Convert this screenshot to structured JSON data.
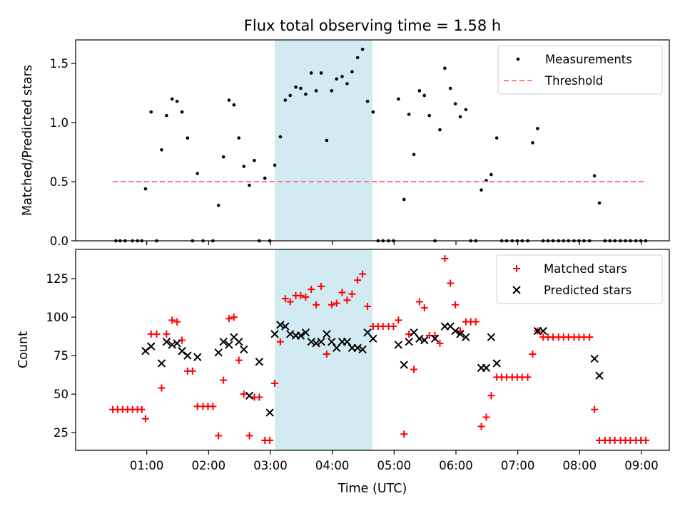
{
  "figure": {
    "title": "Flux total observing time = 1.58 h",
    "xlabel": "Time (UTC)",
    "x_ticks": [
      "01:00",
      "02:00",
      "03:00",
      "04:00",
      "05:00",
      "06:00",
      "07:00",
      "08:00",
      "09:00"
    ],
    "x_tick_hours": [
      1,
      2,
      3,
      4,
      5,
      6,
      7,
      8,
      9
    ],
    "x_range_hours": [
      -0.15,
      9.45
    ],
    "highlight_span_hours": [
      3.07,
      4.65
    ],
    "highlight_color": "#add8e6"
  },
  "chart_data": [
    {
      "type": "scatter",
      "ylabel": "Matched/Predicted stars",
      "ylim": [
        0,
        1.7
      ],
      "y_ticks": [
        0.0,
        0.5,
        1.0,
        1.5
      ],
      "y_tick_labels": [
        "0.0",
        "0.5",
        "1.0",
        "1.5"
      ],
      "legend_position": "top-right",
      "series": [
        {
          "name": "Measurements",
          "marker": "dot",
          "color": "#000000",
          "points": [
            [
              0.5,
              0
            ],
            [
              0.57,
              0
            ],
            [
              0.65,
              0
            ],
            [
              0.77,
              0
            ],
            [
              0.85,
              0
            ],
            [
              0.92,
              0
            ],
            [
              0.98,
              0.44
            ],
            [
              1.07,
              1.09
            ],
            [
              1.16,
              0
            ],
            [
              1.24,
              0.77
            ],
            [
              1.32,
              1.06
            ],
            [
              1.41,
              1.2
            ],
            [
              1.49,
              1.18
            ],
            [
              1.57,
              1.09
            ],
            [
              1.66,
              0.87
            ],
            [
              1.74,
              0
            ],
            [
              1.82,
              0.57
            ],
            [
              1.91,
              0
            ],
            [
              2.07,
              0
            ],
            [
              2.16,
              0.3
            ],
            [
              2.24,
              0.71
            ],
            [
              2.33,
              1.19
            ],
            [
              2.41,
              1.15
            ],
            [
              2.49,
              0.87
            ],
            [
              2.57,
              0.63
            ],
            [
              2.66,
              0.47
            ],
            [
              2.74,
              0.68
            ],
            [
              2.82,
              0
            ],
            [
              2.91,
              0.53
            ],
            [
              2.99,
              0
            ],
            [
              3.07,
              0.64
            ],
            [
              3.16,
              0.88
            ],
            [
              3.24,
              1.19
            ],
            [
              3.32,
              1.23
            ],
            [
              3.41,
              1.3
            ],
            [
              3.49,
              1.29
            ],
            [
              3.57,
              1.24
            ],
            [
              3.66,
              1.42
            ],
            [
              3.74,
              1.27
            ],
            [
              3.82,
              1.42
            ],
            [
              3.91,
              0.85
            ],
            [
              3.99,
              1.27
            ],
            [
              4.07,
              1.37
            ],
            [
              4.16,
              1.39
            ],
            [
              4.24,
              1.33
            ],
            [
              4.32,
              1.43
            ],
            [
              4.41,
              1.55
            ],
            [
              4.49,
              1.62
            ],
            [
              4.57,
              1.18
            ],
            [
              4.66,
              1.09
            ],
            [
              4.74,
              0
            ],
            [
              4.82,
              0
            ],
            [
              4.91,
              0
            ],
            [
              4.99,
              0
            ],
            [
              5.07,
              1.2
            ],
            [
              5.16,
              0.35
            ],
            [
              5.24,
              1.07
            ],
            [
              5.32,
              0.73
            ],
            [
              5.41,
              1.27
            ],
            [
              5.49,
              1.23
            ],
            [
              5.57,
              1.06
            ],
            [
              5.66,
              0
            ],
            [
              5.74,
              0.94
            ],
            [
              5.82,
              1.46
            ],
            [
              5.91,
              1.29
            ],
            [
              5.99,
              1.16
            ],
            [
              6.07,
              1.05
            ],
            [
              6.16,
              1.11
            ],
            [
              6.24,
              0
            ],
            [
              6.32,
              0
            ],
            [
              6.41,
              0.43
            ],
            [
              6.49,
              0.51
            ],
            [
              6.57,
              0.56
            ],
            [
              6.66,
              0.87
            ],
            [
              6.74,
              0
            ],
            [
              6.82,
              0
            ],
            [
              6.91,
              0
            ],
            [
              6.99,
              0
            ],
            [
              7.07,
              0
            ],
            [
              7.16,
              0
            ],
            [
              7.24,
              0.83
            ],
            [
              7.32,
              0.95
            ],
            [
              7.41,
              0
            ],
            [
              7.49,
              0
            ],
            [
              7.57,
              0
            ],
            [
              7.66,
              0
            ],
            [
              7.74,
              0
            ],
            [
              7.82,
              0
            ],
            [
              7.91,
              0
            ],
            [
              7.99,
              0
            ],
            [
              8.07,
              0
            ],
            [
              8.16,
              0
            ],
            [
              8.24,
              0.55
            ],
            [
              8.32,
              0.32
            ],
            [
              8.41,
              0
            ],
            [
              8.49,
              0
            ],
            [
              8.57,
              0
            ],
            [
              8.66,
              0
            ],
            [
              8.74,
              0
            ],
            [
              8.82,
              0
            ],
            [
              8.91,
              0
            ],
            [
              8.99,
              0
            ],
            [
              9.07,
              0
            ]
          ]
        },
        {
          "name": "Threshold",
          "marker": "dashed-line",
          "color": "#ff7f7f",
          "points": [
            [
              0.45,
              0.5
            ],
            [
              9.07,
              0.5
            ]
          ]
        }
      ]
    },
    {
      "type": "scatter",
      "ylabel": "Count",
      "ylim": [
        13.5,
        144
      ],
      "y_ticks": [
        25,
        50,
        75,
        100,
        125
      ],
      "y_tick_labels": [
        "25",
        "50",
        "75",
        "100",
        "125"
      ],
      "legend_position": "top-right",
      "series": [
        {
          "name": "Matched stars",
          "marker": "plus",
          "color": "#ff0000",
          "points": [
            [
              0.45,
              40
            ],
            [
              0.53,
              40
            ],
            [
              0.61,
              40
            ],
            [
              0.69,
              40
            ],
            [
              0.77,
              40
            ],
            [
              0.85,
              40
            ],
            [
              0.92,
              40
            ],
            [
              0.98,
              34
            ],
            [
              1.07,
              89
            ],
            [
              1.16,
              89
            ],
            [
              1.24,
              54
            ],
            [
              1.32,
              89
            ],
            [
              1.41,
              98
            ],
            [
              1.49,
              97
            ],
            [
              1.57,
              85
            ],
            [
              1.66,
              65
            ],
            [
              1.74,
              65
            ],
            [
              1.82,
              42
            ],
            [
              1.91,
              42
            ],
            [
              1.99,
              42
            ],
            [
              2.07,
              42
            ],
            [
              2.16,
              23
            ],
            [
              2.24,
              59
            ],
            [
              2.33,
              99
            ],
            [
              2.41,
              100
            ],
            [
              2.49,
              72
            ],
            [
              2.57,
              50
            ],
            [
              2.66,
              23
            ],
            [
              2.74,
              48
            ],
            [
              2.82,
              48
            ],
            [
              2.91,
              20
            ],
            [
              2.99,
              20
            ],
            [
              3.07,
              57
            ],
            [
              3.16,
              84
            ],
            [
              3.24,
              112
            ],
            [
              3.32,
              110
            ],
            [
              3.41,
              114
            ],
            [
              3.49,
              114
            ],
            [
              3.57,
              113
            ],
            [
              3.66,
              118
            ],
            [
              3.74,
              108
            ],
            [
              3.82,
              120
            ],
            [
              3.91,
              76
            ],
            [
              3.99,
              108
            ],
            [
              4.07,
              109
            ],
            [
              4.16,
              116
            ],
            [
              4.24,
              111
            ],
            [
              4.32,
              115
            ],
            [
              4.41,
              124
            ],
            [
              4.49,
              128
            ],
            [
              4.57,
              107
            ],
            [
              4.66,
              94
            ],
            [
              4.74,
              94
            ],
            [
              4.82,
              94
            ],
            [
              4.91,
              94
            ],
            [
              4.99,
              94
            ],
            [
              5.07,
              98
            ],
            [
              5.16,
              24
            ],
            [
              5.24,
              89
            ],
            [
              5.32,
              66
            ],
            [
              5.41,
              110
            ],
            [
              5.49,
              106
            ],
            [
              5.57,
              88
            ],
            [
              5.66,
              88
            ],
            [
              5.74,
              83
            ],
            [
              5.82,
              138
            ],
            [
              5.91,
              122
            ],
            [
              5.99,
              108
            ],
            [
              6.07,
              91
            ],
            [
              6.16,
              97
            ],
            [
              6.24,
              97
            ],
            [
              6.32,
              97
            ],
            [
              6.41,
              29
            ],
            [
              6.49,
              35
            ],
            [
              6.57,
              49
            ],
            [
              6.66,
              61
            ],
            [
              6.74,
              61
            ],
            [
              6.82,
              61
            ],
            [
              6.91,
              61
            ],
            [
              6.99,
              61
            ],
            [
              7.07,
              61
            ],
            [
              7.16,
              61
            ],
            [
              7.24,
              76
            ],
            [
              7.32,
              91
            ],
            [
              7.41,
              87
            ],
            [
              7.49,
              87
            ],
            [
              7.57,
              87
            ],
            [
              7.66,
              87
            ],
            [
              7.74,
              87
            ],
            [
              7.82,
              87
            ],
            [
              7.91,
              87
            ],
            [
              7.99,
              87
            ],
            [
              8.07,
              87
            ],
            [
              8.16,
              87
            ],
            [
              8.24,
              40
            ],
            [
              8.32,
              20
            ],
            [
              8.41,
              20
            ],
            [
              8.49,
              20
            ],
            [
              8.57,
              20
            ],
            [
              8.66,
              20
            ],
            [
              8.74,
              20
            ],
            [
              8.82,
              20
            ],
            [
              8.91,
              20
            ],
            [
              8.99,
              20
            ],
            [
              9.07,
              20
            ]
          ]
        },
        {
          "name": "Predicted stars",
          "marker": "x",
          "color": "#000000",
          "points": [
            [
              0.98,
              78
            ],
            [
              1.07,
              81
            ],
            [
              1.24,
              70
            ],
            [
              1.32,
              84
            ],
            [
              1.41,
              82
            ],
            [
              1.49,
              83
            ],
            [
              1.57,
              78
            ],
            [
              1.66,
              75
            ],
            [
              1.82,
              74
            ],
            [
              2.16,
              77
            ],
            [
              2.24,
              84
            ],
            [
              2.33,
              82
            ],
            [
              2.41,
              87
            ],
            [
              2.49,
              84
            ],
            [
              2.57,
              79
            ],
            [
              2.66,
              49
            ],
            [
              2.82,
              71
            ],
            [
              2.99,
              38
            ],
            [
              3.07,
              89
            ],
            [
              3.16,
              95
            ],
            [
              3.24,
              94
            ],
            [
              3.32,
              89
            ],
            [
              3.41,
              88
            ],
            [
              3.49,
              88
            ],
            [
              3.57,
              90
            ],
            [
              3.66,
              84
            ],
            [
              3.74,
              83
            ],
            [
              3.82,
              84
            ],
            [
              3.91,
              89
            ],
            [
              3.99,
              84
            ],
            [
              4.07,
              80
            ],
            [
              4.16,
              84
            ],
            [
              4.24,
              84
            ],
            [
              4.32,
              80
            ],
            [
              4.41,
              80
            ],
            [
              4.49,
              79
            ],
            [
              4.57,
              90
            ],
            [
              4.66,
              86
            ],
            [
              5.07,
              82
            ],
            [
              5.16,
              69
            ],
            [
              5.24,
              84
            ],
            [
              5.32,
              90
            ],
            [
              5.41,
              86
            ],
            [
              5.49,
              85
            ],
            [
              5.66,
              86
            ],
            [
              5.82,
              94
            ],
            [
              5.91,
              94
            ],
            [
              5.99,
              91
            ],
            [
              6.07,
              89
            ],
            [
              6.16,
              87
            ],
            [
              6.41,
              67
            ],
            [
              6.49,
              67
            ],
            [
              6.57,
              87
            ],
            [
              6.66,
              70
            ],
            [
              7.32,
              91
            ],
            [
              7.41,
              91
            ],
            [
              8.24,
              73
            ],
            [
              8.32,
              62
            ]
          ]
        }
      ]
    }
  ]
}
